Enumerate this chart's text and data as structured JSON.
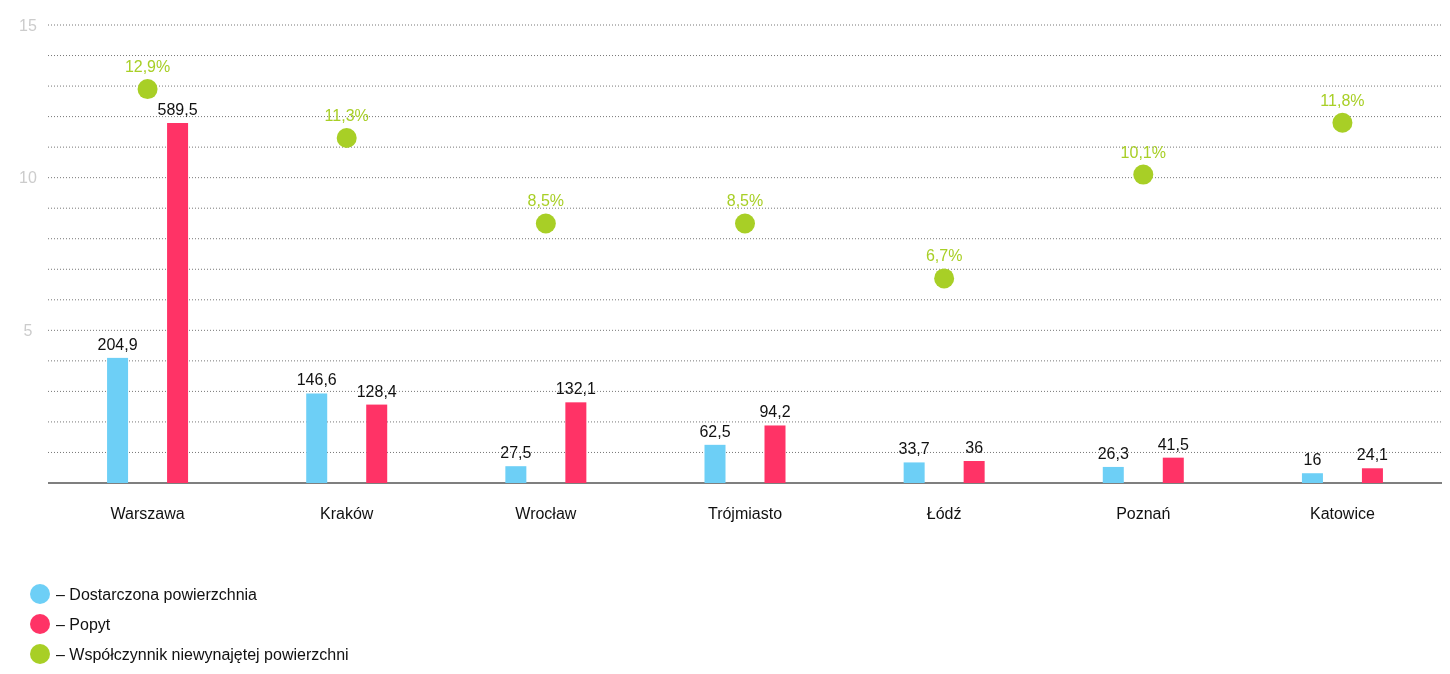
{
  "chart_data": {
    "type": "bar",
    "categories": [
      "Warszawa",
      "Kraków",
      "Wrocław",
      "Trójmiasto",
      "Łódź",
      "Poznań",
      "Katowice"
    ],
    "series": [
      {
        "name": "– Dostarczona powierzchnia",
        "color": "#6dcff6",
        "axis": "y2",
        "values": [
          204.9,
          146.6,
          27.5,
          62.5,
          33.7,
          26.3,
          16
        ],
        "value_labels": [
          "204,9",
          "146,6",
          "27,5",
          "62,5",
          "33,7",
          "26,3",
          "16"
        ]
      },
      {
        "name": "– Popyt",
        "color": "#ff3366",
        "axis": "y2",
        "values": [
          589.5,
          128.4,
          132.1,
          94.2,
          36,
          41.5,
          24.1
        ],
        "value_labels": [
          "589,5",
          "128,4",
          "132,1",
          "94,2",
          "36",
          "41,5",
          "24,1"
        ]
      },
      {
        "name": "– Współczynnik niewynajętej powierzchni",
        "type": "scatter",
        "color": "#a8cf26",
        "marker": "circle",
        "values": [
          12.9,
          11.3,
          8.5,
          8.5,
          6.7,
          10.1,
          11.8
        ],
        "value_labels": [
          "12,9%",
          "11,3%",
          "8,5%",
          "8,5%",
          "6,7%",
          "10,1%",
          "11,8%"
        ]
      }
    ],
    "ylim": [
      0,
      15
    ],
    "yticks": [
      {
        "value": 1,
        "label": null
      },
      {
        "value": 2,
        "label": null
      },
      {
        "value": 3,
        "label": null
      },
      {
        "value": 4,
        "label": null
      },
      5,
      {
        "value": 6,
        "label": null
      },
      {
        "value": 7,
        "label": null
      },
      {
        "value": 8,
        "label": null
      },
      {
        "value": 9,
        "label": null
      },
      10,
      {
        "value": 11,
        "label": null
      },
      {
        "value": 12,
        "label": null
      },
      {
        "value": 13,
        "label": null
      },
      {
        "value": 14,
        "label": null
      },
      15
    ],
    "y2lim": [
      0,
      750
    ],
    "grid": "y",
    "legend": "bottom left"
  }
}
